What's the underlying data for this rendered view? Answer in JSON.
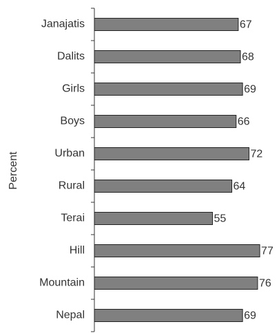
{
  "chart_data": {
    "type": "barh",
    "y_label": "Percent",
    "categories": [
      "Janajatis",
      "Dalits",
      "Girls",
      "Boys",
      "Urban",
      "Rural",
      "Terai",
      "Hill",
      "Mountain",
      "Nepal"
    ],
    "values": [
      67,
      68,
      69,
      66,
      72,
      64,
      55,
      77,
      76,
      69
    ],
    "color": "#808080",
    "xlim": [
      0,
      85
    ]
  }
}
